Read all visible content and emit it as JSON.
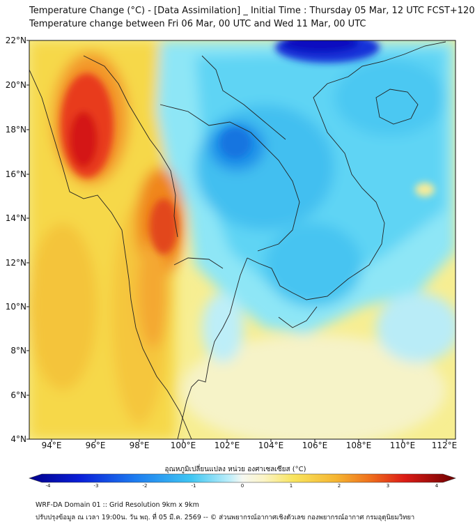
{
  "title": {
    "line1": "Temperature Change (°C) - [Data Assimilation] _ Initial Time : Thursday 05 Mar, 12 UTC FCST+120",
    "line2": "Temperature change between Fri 06 Mar, 00 UTC and Wed 11 Mar, 00 UTC"
  },
  "map": {
    "lat_labels": [
      "22°N",
      "20°N",
      "18°N",
      "16°N",
      "14°N",
      "12°N",
      "10°N",
      "8°N",
      "6°N",
      "4°N"
    ],
    "lon_labels": [
      "94°E",
      "96°E",
      "98°E",
      "100°E",
      "102°E",
      "104°E",
      "106°E",
      "108°E",
      "110°E",
      "112°E"
    ],
    "lat_range": [
      4,
      22.2
    ],
    "lon_range": [
      93,
      112.5
    ]
  },
  "colorbar": {
    "title": "อุณหภูมิเปลี่ยนแปลง หน่วย องศาเซลเซียส (°C)",
    "ticks": [
      "-4",
      "-3",
      "-2",
      "-1",
      "0",
      "1",
      "2",
      "3",
      "4"
    ],
    "range": [
      -4,
      4
    ]
  },
  "footer": {
    "line1": "WRF-DA Domain 01 :: Grid Resolution 9km x 9km",
    "line2": "ปรับปรุงข้อมูล ณ เวลา 19:00น. วัน พฤ. ที่ 05 มี.ค. 2569 -- © ส่วนพยากรณ์อากาศเชิงตัวเลข กองพยากรณ์อากาศ กรมอุตุนิยมวิทยา"
  },
  "colors": {
    "strong_cold": "#0000c8",
    "cold": "#2fa8ef",
    "cool": "#64d8f5",
    "neutral": "#f4f6e8",
    "warm": "#f6df5a",
    "hot": "#f28a1c",
    "very_hot": "#d21818",
    "coastline": "#222222"
  }
}
